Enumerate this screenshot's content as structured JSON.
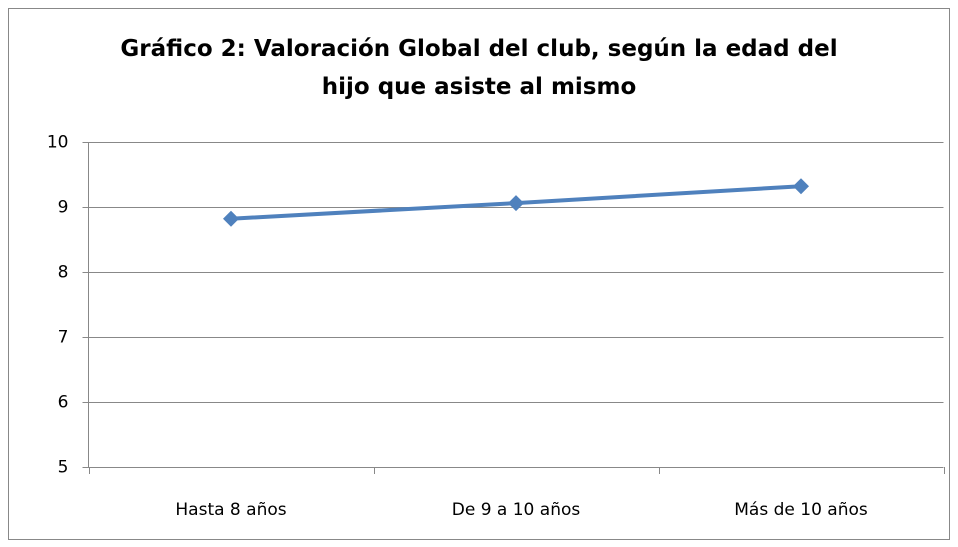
{
  "chart_data": {
    "type": "line",
    "title": "Gráfico 2: Valoración Global del club, según la edad del hijo que asiste al mismo",
    "categories": [
      "Hasta 8 años",
      "De 9 a 10 años",
      "Más de 10 años"
    ],
    "series": [
      {
        "name": "Valoración Global",
        "color": "#4f81bd",
        "values": [
          8.82,
          9.06,
          9.32
        ]
      }
    ],
    "ylim": [
      5,
      10
    ],
    "yticks": [
      5,
      6,
      7,
      8,
      9,
      10
    ],
    "grid": true
  }
}
